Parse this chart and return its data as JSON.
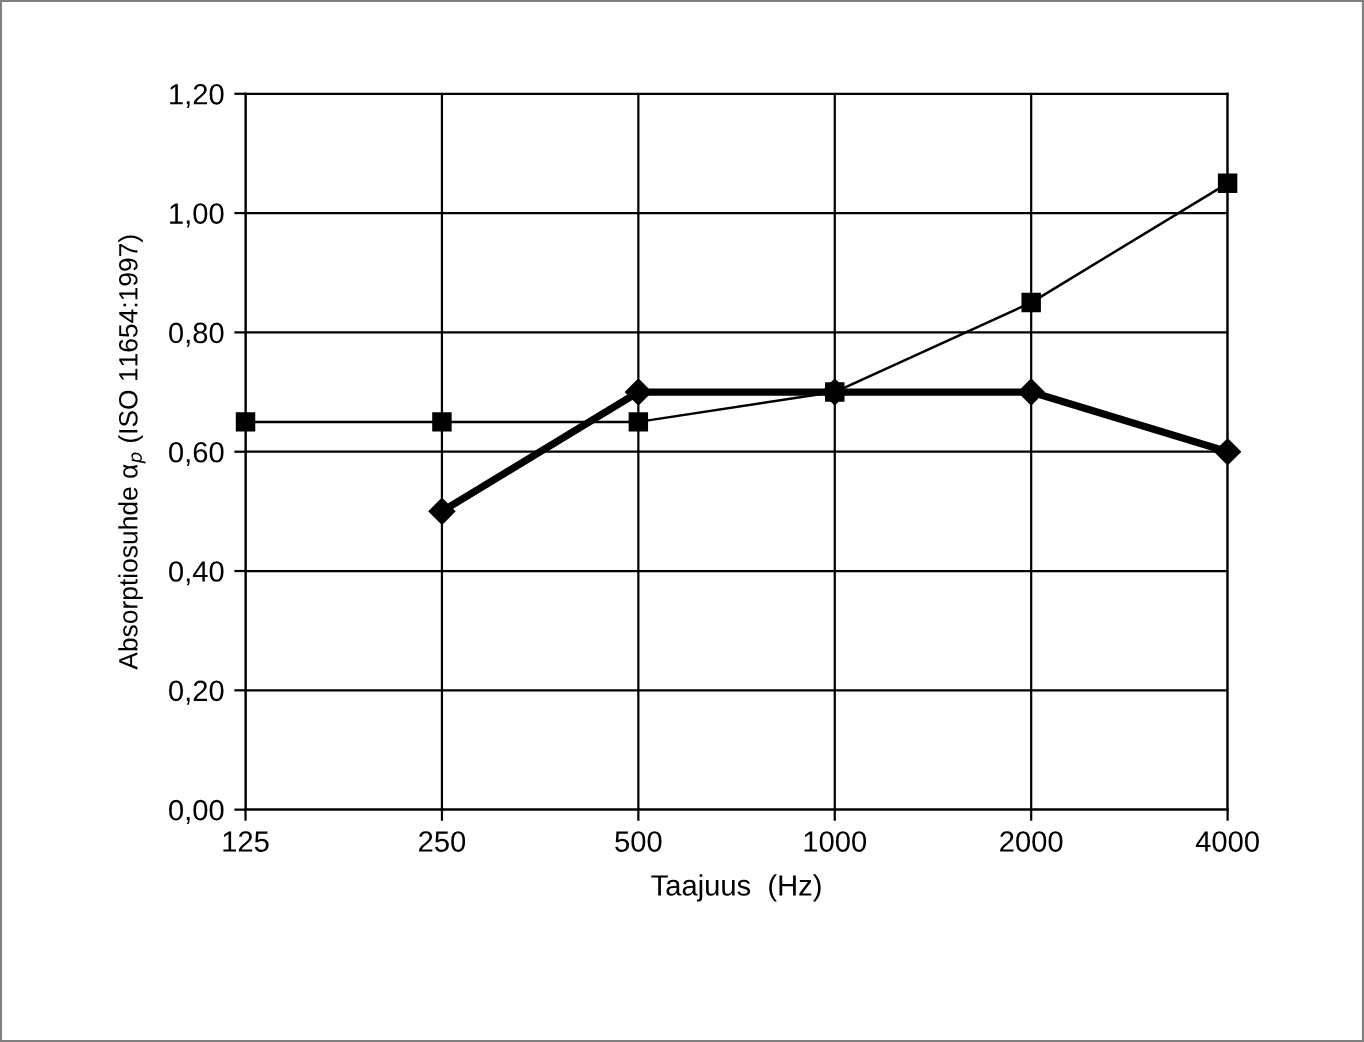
{
  "chart_data": {
    "type": "line",
    "xlabel": "Taajuus  (Hz)",
    "ylabel": "Absorptiosuhde α$_{p}$ (ISO 11654:1997)",
    "categories": [
      "125",
      "250",
      "500",
      "1000",
      "2000",
      "4000"
    ],
    "series": [
      {
        "color": "#000000",
        "marker": "square",
        "values": [
          0.65,
          0.65,
          0.65,
          0.7,
          0.85,
          1.05
        ]
      },
      {
        "color": "#000000",
        "marker": "diamond",
        "values": [
          null,
          0.5,
          0.7,
          0.7,
          0.7,
          0.6
        ]
      }
    ],
    "ylim": [
      0,
      1.2
    ],
    "yticks": [
      {
        "value": 0,
        "label": "0,00"
      },
      {
        "value": 0.2,
        "label": "0,20"
      },
      {
        "value": 0.4,
        "label": "0,40"
      },
      {
        "value": 0.6,
        "label": "0,60"
      },
      {
        "value": 0.8,
        "label": "0,80"
      },
      {
        "value": 1.0,
        "label": "1,00"
      },
      {
        "value": 1.2,
        "label": "1,20"
      }
    ],
    "grid": true,
    "legend": false
  }
}
